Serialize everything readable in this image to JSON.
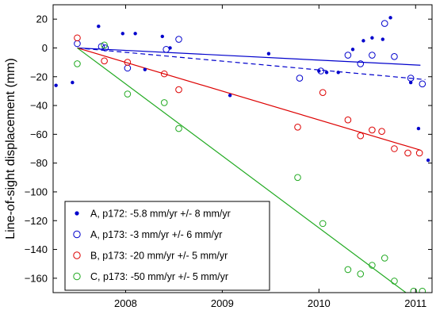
{
  "chart_data": {
    "type": "scatter",
    "ylabel": "Line-of-sight displacement (mm)",
    "xlabel": "",
    "xlim": [
      2007.25,
      2011.17
    ],
    "ylim": [
      -170,
      30
    ],
    "x_ticks": [
      2008,
      2009,
      2010,
      2011
    ],
    "y_ticks": [
      20,
      0,
      -20,
      -40,
      -60,
      -80,
      -100,
      -120,
      -140,
      -160
    ],
    "grid": false,
    "legend_position": "bottom-left",
    "series": [
      {
        "name": "A, p172: -5.8 mm/yr +/- 8 mm/yr",
        "color": "#0000cc",
        "marker": "filled-circle",
        "x": [
          2007.28,
          2007.45,
          2007.72,
          2007.97,
          2008.1,
          2008.2,
          2008.38,
          2008.46,
          2009.08,
          2009.48,
          2010.0,
          2010.08,
          2010.2,
          2010.35,
          2010.46,
          2010.55,
          2010.66,
          2010.74,
          2010.95,
          2011.03,
          2011.13
        ],
        "y": [
          -26,
          -24,
          15,
          10,
          10,
          -15,
          8,
          0,
          -33,
          -4,
          -16,
          -17,
          -17,
          -1,
          5,
          7,
          6,
          21,
          -24,
          -56,
          -78
        ]
      },
      {
        "name": "A, p173: -3 mm/yr +/- 6 mm/yr",
        "color": "#0000cc",
        "marker": "open-circle",
        "x": [
          2007.5,
          2007.75,
          2007.79,
          2008.02,
          2008.42,
          2008.55,
          2009.8,
          2010.02,
          2010.3,
          2010.43,
          2010.55,
          2010.68,
          2010.78,
          2010.95,
          2011.07
        ],
        "y": [
          3,
          1,
          0,
          -14,
          -1,
          6,
          -21,
          -16,
          -5,
          -11,
          -5,
          17,
          -6,
          -21,
          -25
        ]
      },
      {
        "name": "B, p173: -20 mm/yr +/- 5 mm/yr",
        "color": "#dd0000",
        "marker": "open-circle",
        "x": [
          2007.5,
          2007.78,
          2008.02,
          2008.4,
          2008.55,
          2009.78,
          2010.04,
          2010.3,
          2010.43,
          2010.55,
          2010.65,
          2010.78,
          2010.92,
          2011.04
        ],
        "y": [
          7,
          -9,
          -10,
          -18,
          -29,
          -55,
          -31,
          -50,
          -61,
          -57,
          -58,
          -70,
          -73,
          -73
        ]
      },
      {
        "name": "C, p173: -50 mm/yr +/- 5 mm/yr",
        "color": "#22aa22",
        "marker": "open-circle",
        "x": [
          2007.5,
          2007.78,
          2008.02,
          2008.4,
          2008.55,
          2009.78,
          2010.04,
          2010.3,
          2010.43,
          2010.55,
          2010.68,
          2010.78,
          2010.98,
          2011.07
        ],
        "y": [
          -11,
          2,
          -32,
          -38,
          -56,
          -90,
          -122,
          -154,
          -157,
          -151,
          -146,
          -162,
          -169,
          -169
        ]
      }
    ],
    "trend_lines": [
      {
        "color": "#0000cc",
        "style": "solid",
        "x": [
          2007.5,
          2011.05
        ],
        "y": [
          0,
          -12
        ]
      },
      {
        "color": "#0000cc",
        "style": "dashed",
        "x": [
          2007.5,
          2011.1
        ],
        "y": [
          0,
          -22
        ]
      },
      {
        "color": "#dd0000",
        "style": "solid",
        "x": [
          2007.5,
          2011.05
        ],
        "y": [
          0,
          -71
        ]
      },
      {
        "color": "#22aa22",
        "style": "solid",
        "x": [
          2007.5,
          2011.0
        ],
        "y": [
          0,
          -175
        ]
      }
    ]
  }
}
